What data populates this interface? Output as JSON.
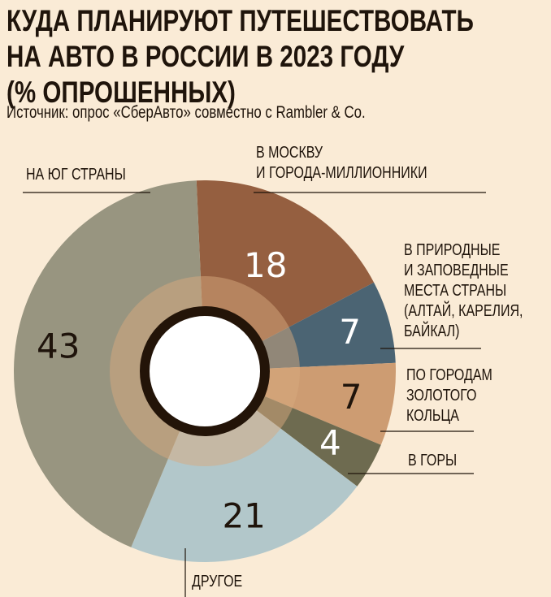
{
  "title_lines": [
    "КУДА ПЛАНИРУЮТ ПУТЕШЕСТВОВАТЬ",
    "НА АВТО В РОССИИ В 2023 ГОДУ",
    "(% ОПРОШЕННЫХ)"
  ],
  "source": "Источник: опрос «СберАвто» совместно с Rambler & Co.",
  "chart_data": {
    "type": "pie",
    "subtype": "donut",
    "title": "КУДА ПЛАНИРУЮТ ПУТЕШЕСТВОВАТЬ НА АВТО В РОССИИ В 2023 ГОДУ (% ОПРОШЕННЫХ)",
    "unit": "%",
    "slices": [
      {
        "label": "В МОСКВУ И ГОРОДА-МИЛЛИОННИКИ",
        "label_lines": [
          "В МОСКВУ",
          "И ГОРОДА-МИЛЛИОННИКИ"
        ],
        "value": 18,
        "color": "#955f40",
        "text_color": "#ffffff"
      },
      {
        "label": "В ПРИРОДНЫЕ И ЗАПОВЕДНЫЕ МЕСТА СТРАНЫ (АЛТАЙ, КАРЕЛИЯ, БАЙКАЛ)",
        "label_lines": [
          "В ПРИРОДНЫЕ",
          "И ЗАПОВЕДНЫЕ",
          "МЕСТА СТРАНЫ",
          "(АЛТАЙ, КАРЕЛИЯ,",
          "БАЙКАЛ)"
        ],
        "value": 7,
        "color": "#4b6473",
        "text_color": "#ffffff"
      },
      {
        "label": "ПО ГОРОДАМ ЗОЛОТОГО КОЛЬЦА",
        "label_lines": [
          "ПО ГОРОДАМ",
          "ЗОЛОТОГО",
          "КОЛЬЦА"
        ],
        "value": 7,
        "color": "#cd9c72",
        "text_color": "#1f140b"
      },
      {
        "label": "В ГОРЫ",
        "label_lines": [
          "В ГОРЫ"
        ],
        "value": 4,
        "color": "#6e6b50",
        "text_color": "#ffffff"
      },
      {
        "label": "ДРУГОЕ",
        "label_lines": [
          "ДРУГОЕ"
        ],
        "value": 21,
        "color": "#b2c7ca",
        "text_color": "#1f140b"
      },
      {
        "label": "НА ЮГ СТРАНЫ",
        "label_lines": [
          "НА ЮГ СТРАНЫ"
        ],
        "value": 43,
        "color": "#989580",
        "text_color": "#1f140b"
      }
    ],
    "legend": "none"
  }
}
